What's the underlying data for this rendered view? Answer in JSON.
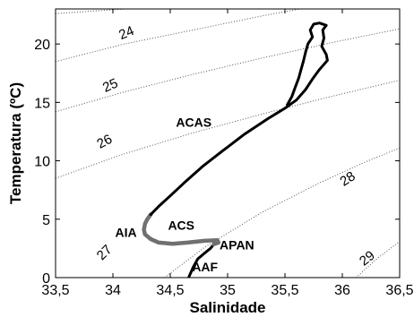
{
  "chart_data": {
    "type": "line",
    "title": "",
    "xlabel": "Salinidade",
    "ylabel": "Temperatura (ºC)",
    "xlim": [
      33.5,
      36.5
    ],
    "ylim": [
      0,
      23
    ],
    "x_ticks": [
      {
        "value": 33.5,
        "label": "33,5"
      },
      {
        "value": 34.0,
        "label": "34"
      },
      {
        "value": 34.5,
        "label": "34,5"
      },
      {
        "value": 35.0,
        "label": "35"
      },
      {
        "value": 35.5,
        "label": "35,5"
      },
      {
        "value": 36.0,
        "label": "36"
      },
      {
        "value": 36.5,
        "label": "36,5"
      }
    ],
    "y_ticks": [
      {
        "value": 0,
        "label": "0"
      },
      {
        "value": 5,
        "label": "5"
      },
      {
        "value": 10,
        "label": "10"
      },
      {
        "value": 15,
        "label": "15"
      },
      {
        "value": 20,
        "label": "20"
      }
    ],
    "grid": false,
    "isopycnals": [
      {
        "label": "24",
        "points": [
          [
            33.5,
            22.6
          ],
          [
            34.1,
            23.0
          ],
          [
            34.7,
            24.0
          ],
          [
            35.3,
            25.0
          ],
          [
            35.9,
            25.9
          ],
          [
            36.5,
            26.7
          ]
        ],
        "label_at": [
          34.12,
          20.9
        ],
        "label_angle": -22
      },
      {
        "label": "25",
        "points": [
          [
            33.5,
            18.5
          ],
          [
            34.1,
            20.0
          ],
          [
            34.7,
            21.2
          ],
          [
            35.3,
            22.4
          ],
          [
            35.9,
            23.5
          ],
          [
            36.5,
            24.5
          ]
        ],
        "label_at": [
          33.98,
          16.4
        ],
        "label_angle": -24
      },
      {
        "label": "26",
        "points": [
          [
            33.5,
            14.2
          ],
          [
            34.1,
            15.9
          ],
          [
            34.7,
            17.4
          ],
          [
            35.3,
            18.8
          ],
          [
            35.9,
            20.1
          ],
          [
            36.5,
            21.3
          ]
        ],
        "label_at": [
          33.93,
          11.6
        ],
        "label_angle": -28
      },
      {
        "label": "27",
        "points": [
          [
            33.5,
            8.5
          ],
          [
            34.1,
            10.6
          ],
          [
            34.7,
            12.4
          ],
          [
            35.3,
            14.0
          ],
          [
            35.9,
            15.5
          ],
          [
            36.5,
            16.9
          ]
        ],
        "label_at": [
          33.93,
          2.1
        ],
        "label_angle": -45
      },
      {
        "label": "28",
        "points": [
          [
            34.45,
            0.0
          ],
          [
            34.8,
            2.6
          ],
          [
            35.3,
            5.6
          ],
          [
            35.8,
            8.1
          ],
          [
            36.2,
            9.9
          ],
          [
            36.5,
            11.1
          ]
        ],
        "label_at": [
          36.05,
          8.4
        ],
        "label_angle": -33
      },
      {
        "label": "29",
        "points": [
          [
            36.12,
            0.0
          ],
          [
            36.3,
            1.6
          ],
          [
            36.5,
            3.1
          ]
        ],
        "label_at": [
          36.22,
          1.6
        ],
        "label_angle": -38
      }
    ],
    "series": [
      {
        "color": "#000000",
        "values": [
          [
            34.66,
            0.0
          ],
          [
            34.7,
            0.9
          ],
          [
            34.74,
            1.6
          ],
          [
            34.8,
            2.1
          ],
          [
            34.85,
            2.5
          ],
          [
            34.88,
            2.85
          ]
        ]
      },
      {
        "color": "#707070",
        "values": [
          [
            34.88,
            2.85
          ],
          [
            34.92,
            3.0
          ],
          [
            34.91,
            3.2
          ],
          [
            34.8,
            3.15
          ],
          [
            34.65,
            3.0
          ],
          [
            34.52,
            2.9
          ],
          [
            34.4,
            3.0
          ],
          [
            34.33,
            3.3
          ],
          [
            34.28,
            3.7
          ],
          [
            34.27,
            4.1
          ],
          [
            34.28,
            4.6
          ],
          [
            34.3,
            5.0
          ],
          [
            34.33,
            5.4
          ]
        ]
      },
      {
        "color": "#000000",
        "values": [
          [
            34.33,
            5.4
          ],
          [
            34.4,
            6.1
          ],
          [
            34.5,
            7.0
          ],
          [
            34.62,
            8.1
          ],
          [
            34.78,
            9.5
          ],
          [
            34.95,
            10.8
          ],
          [
            35.15,
            12.3
          ],
          [
            35.35,
            13.6
          ],
          [
            35.5,
            14.5
          ],
          [
            35.6,
            15.2
          ],
          [
            35.68,
            16.1
          ],
          [
            35.74,
            17.0
          ],
          [
            35.8,
            17.8
          ],
          [
            35.87,
            18.6
          ],
          [
            35.86,
            19.1
          ],
          [
            35.82,
            19.8
          ],
          [
            35.84,
            20.5
          ],
          [
            35.83,
            21.2
          ],
          [
            35.86,
            21.6
          ],
          [
            35.8,
            21.8
          ],
          [
            35.75,
            21.7
          ],
          [
            35.72,
            21.2
          ],
          [
            35.74,
            20.6
          ],
          [
            35.7,
            20.0
          ],
          [
            35.68,
            19.3
          ],
          [
            35.66,
            18.5
          ],
          [
            35.64,
            17.8
          ],
          [
            35.62,
            17.1
          ],
          [
            35.59,
            16.3
          ],
          [
            35.56,
            15.5
          ],
          [
            35.52,
            14.8
          ]
        ]
      }
    ],
    "annotations": [
      {
        "text": "ACAS",
        "x": 34.55,
        "y": 12.9
      },
      {
        "text": "AIA",
        "x": 34.02,
        "y": 3.5
      },
      {
        "text": "ACS",
        "x": 34.48,
        "y": 4.1
      },
      {
        "text": "APAN",
        "x": 34.93,
        "y": 2.4
      },
      {
        "text": "AAF",
        "x": 34.69,
        "y": 0.55
      }
    ]
  }
}
